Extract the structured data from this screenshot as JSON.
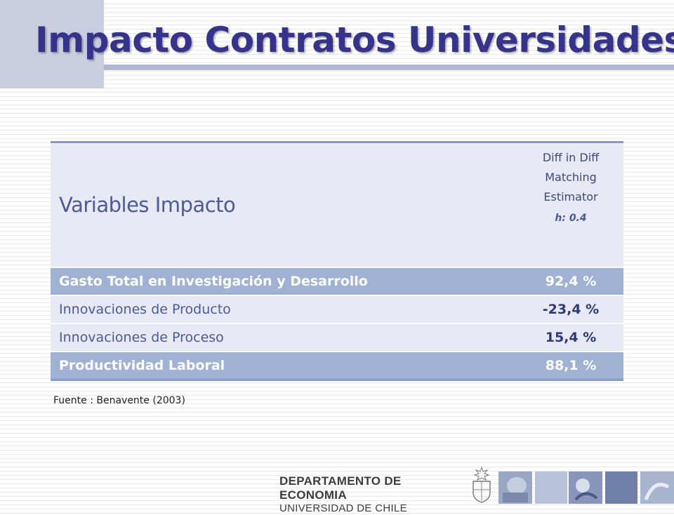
{
  "slide": {
    "title": "Impacto Contratos Universidades"
  },
  "table": {
    "header_label": "Variables  Impacto",
    "estimator_lines": [
      "Diff in Diff",
      "Matching",
      "Estimator"
    ],
    "estimator_param": "h: 0.4",
    "rows": [
      {
        "label": "Gasto Total en Investigación y Desarrollo",
        "value": "92,4 %"
      },
      {
        "label": "Innovaciones de Producto",
        "value": "-23,4 %"
      },
      {
        "label": "Innovaciones de Proceso",
        "value": "15,4 %"
      },
      {
        "label": "Productividad Laboral",
        "value": "88,1 %"
      }
    ]
  },
  "source": "Fuente : Benavente (2003)",
  "footer": {
    "line1": "DEPARTAMENTO DE ECONOMIA",
    "line2": "UNIVERSIDAD DE CHILE"
  },
  "colors": {
    "title": "#36348a",
    "header_bg": "#e7e9f4",
    "highlight_row": "#9fb2d4",
    "border": "#8a9ac2"
  }
}
